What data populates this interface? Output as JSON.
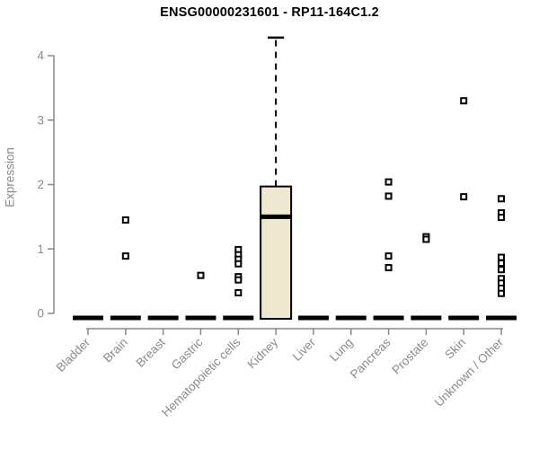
{
  "chart_data": {
    "type": "boxplot",
    "title": "ENSG00000231601 - RP11-164C1.2",
    "ylabel": "Expression",
    "xlabel": "",
    "ylim": [
      0,
      4
    ],
    "yticks": [
      0,
      1,
      2,
      3,
      4
    ],
    "grid": "off",
    "legend": "none",
    "colors": {
      "box_fill": "#efe9d2",
      "box_stroke": "#000000",
      "median": "#000000",
      "axis": "#888888",
      "label": "#8a8a8a",
      "outlier_fill": "#ffffff",
      "outlier_stroke": "#000000",
      "title": "#000000"
    },
    "categories": [
      "Bladder",
      "Brain",
      "Breast",
      "Gastric",
      "Hematopoietic cells",
      "Kidney",
      "Liver",
      "Lung",
      "Pancreas",
      "Prostate",
      "Skin",
      "Unknown / Other"
    ],
    "boxes": [
      {
        "category": "Bladder",
        "q1": 0,
        "median": 0,
        "q3": 0,
        "whisker_low": 0,
        "whisker_high": 0,
        "outliers": []
      },
      {
        "category": "Brain",
        "q1": 0,
        "median": 0,
        "q3": 0,
        "whisker_low": 0,
        "whisker_high": 0,
        "outliers": [
          1.45,
          0.89
        ]
      },
      {
        "category": "Breast",
        "q1": 0,
        "median": 0,
        "q3": 0,
        "whisker_low": 0,
        "whisker_high": 0,
        "outliers": []
      },
      {
        "category": "Gastric",
        "q1": 0,
        "median": 0,
        "q3": 0,
        "whisker_low": 0,
        "whisker_high": 0,
        "outliers": [
          0.59
        ]
      },
      {
        "category": "Hematopoietic cells",
        "q1": 0,
        "median": 0,
        "q3": 0,
        "whisker_low": 0,
        "whisker_high": 0,
        "outliers": [
          0.99,
          0.91,
          0.84,
          0.77,
          0.57,
          0.52,
          0.32
        ]
      },
      {
        "category": "Kidney",
        "q1": 0,
        "median": 1.5,
        "q3": 1.97,
        "whisker_low": 0,
        "whisker_high": 4.28,
        "outliers": []
      },
      {
        "category": "Liver",
        "q1": 0,
        "median": 0,
        "q3": 0,
        "whisker_low": 0,
        "whisker_high": 0,
        "outliers": []
      },
      {
        "category": "Lung",
        "q1": 0,
        "median": 0,
        "q3": 0,
        "whisker_low": 0,
        "whisker_high": 0,
        "outliers": []
      },
      {
        "category": "Pancreas",
        "q1": 0,
        "median": 0,
        "q3": 0,
        "whisker_low": 0,
        "whisker_high": 0,
        "outliers": [
          2.04,
          1.82,
          0.89,
          0.71
        ]
      },
      {
        "category": "Prostate",
        "q1": 0,
        "median": 0,
        "q3": 0,
        "whisker_low": 0,
        "whisker_high": 0,
        "outliers": [
          1.19,
          1.15
        ]
      },
      {
        "category": "Skin",
        "q1": 0,
        "median": 0,
        "q3": 0,
        "whisker_low": 0,
        "whisker_high": 0,
        "outliers": [
          3.3,
          1.81
        ]
      },
      {
        "category": "Unknown / Other",
        "q1": 0,
        "median": 0,
        "q3": 0,
        "whisker_low": 0,
        "whisker_high": 0,
        "outliers": [
          1.78,
          1.56,
          1.49,
          0.87,
          0.78,
          0.68,
          0.54,
          0.47,
          0.39,
          0.31
        ]
      }
    ]
  }
}
